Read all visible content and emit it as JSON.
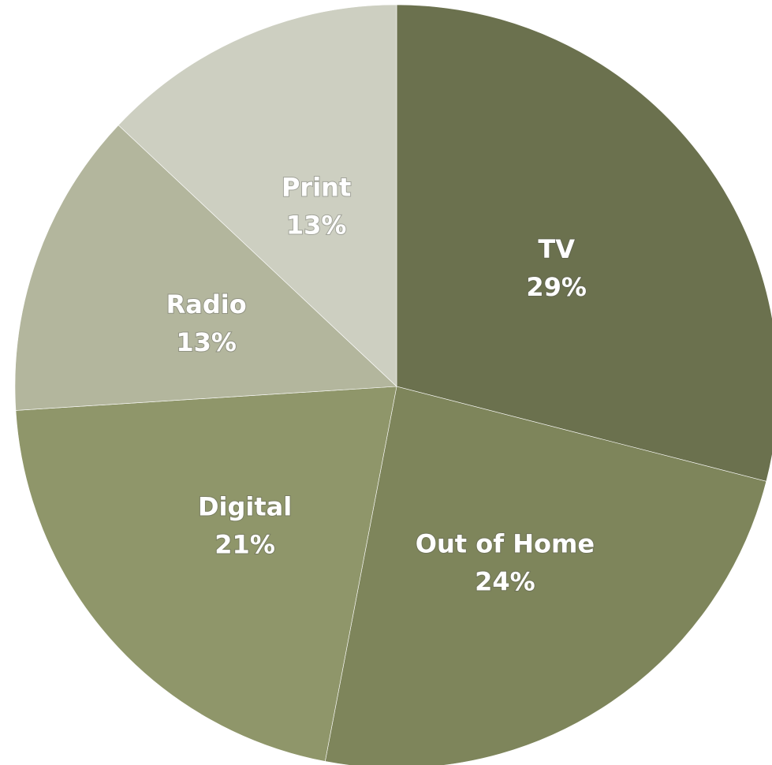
{
  "chart_data": {
    "type": "pie",
    "title": "",
    "slices": [
      {
        "label": "TV",
        "value": 29,
        "display": "29%",
        "color": "#6b714e"
      },
      {
        "label": "Out of Home",
        "value": 24,
        "display": "24%",
        "color": "#7e855b"
      },
      {
        "label": "Digital",
        "value": 21,
        "display": "21%",
        "color": "#8f966a"
      },
      {
        "label": "Radio",
        "value": 13,
        "display": "13%",
        "color": "#b3b69d"
      },
      {
        "label": "Print",
        "value": 13,
        "display": "13%",
        "color": "#cdcfc1"
      }
    ],
    "start_angle": "12 o'clock",
    "direction": "clockwise",
    "legend": "none",
    "labels_inside": true
  }
}
